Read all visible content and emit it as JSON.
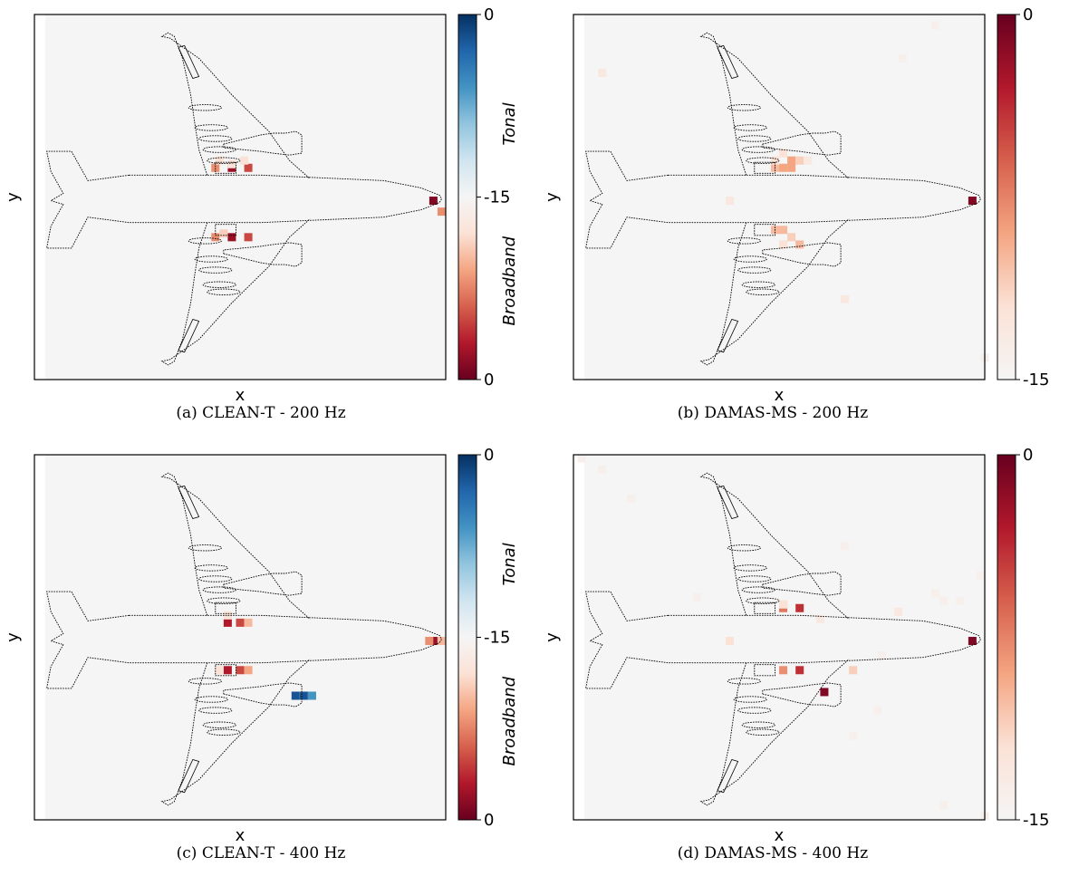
{
  "colors": {
    "background": "#f5f5f5",
    "broadband_scale": [
      "#f5f5f5",
      "#fbe2d6",
      "#f4a582",
      "#d6604d",
      "#b2182b",
      "#67001f"
    ],
    "tonal_scale": [
      "#f5f5f5",
      "#d1e5f0",
      "#92c5de",
      "#4393c3",
      "#2166ac",
      "#053061"
    ]
  },
  "chart_data": [
    {
      "type": "heatmap",
      "caption": "(a) CLEAN-T - 200 Hz",
      "xlabel": "x",
      "ylabel": "y",
      "colorbar": {
        "kind": "diverging",
        "ticks": [
          "0",
          "-15",
          "0"
        ],
        "upper_label": "Tonal",
        "lower_label": "Broadband"
      },
      "sources": [
        {
          "x": 0.48,
          "y": 0.42,
          "v": -2,
          "kind": "broadband"
        },
        {
          "x": 0.44,
          "y": 0.42,
          "v": -8,
          "kind": "broadband"
        },
        {
          "x": 0.52,
          "y": 0.42,
          "v": -5,
          "kind": "broadband"
        },
        {
          "x": 0.48,
          "y": 0.41,
          "v": -12,
          "kind": "broadband"
        },
        {
          "x": 0.51,
          "y": 0.4,
          "v": -12,
          "kind": "broadband"
        },
        {
          "x": 0.45,
          "y": 0.4,
          "v": -12,
          "kind": "broadband"
        },
        {
          "x": 0.48,
          "y": 0.61,
          "v": -2,
          "kind": "broadband"
        },
        {
          "x": 0.44,
          "y": 0.61,
          "v": -8,
          "kind": "broadband"
        },
        {
          "x": 0.52,
          "y": 0.61,
          "v": -5,
          "kind": "broadband"
        },
        {
          "x": 0.46,
          "y": 0.6,
          "v": -11,
          "kind": "broadband"
        },
        {
          "x": 0.97,
          "y": 0.51,
          "v": -1,
          "kind": "broadband"
        },
        {
          "x": 0.99,
          "y": 0.54,
          "v": -8,
          "kind": "broadband"
        }
      ]
    },
    {
      "type": "heatmap",
      "caption": "(b) DAMAS-MS - 200 Hz",
      "xlabel": "x",
      "ylabel": "y",
      "colorbar": {
        "kind": "sequential",
        "ticks": [
          "0",
          "-15"
        ]
      },
      "sources": [
        {
          "x": 0.53,
          "y": 0.42,
          "v": -9,
          "kind": "broadband"
        },
        {
          "x": 0.51,
          "y": 0.42,
          "v": -9,
          "kind": "broadband"
        },
        {
          "x": 0.49,
          "y": 0.42,
          "v": -10,
          "kind": "broadband"
        },
        {
          "x": 0.55,
          "y": 0.4,
          "v": -11,
          "kind": "broadband"
        },
        {
          "x": 0.53,
          "y": 0.4,
          "v": -9,
          "kind": "broadband"
        },
        {
          "x": 0.49,
          "y": 0.4,
          "v": -12,
          "kind": "broadband"
        },
        {
          "x": 0.51,
          "y": 0.38,
          "v": -12,
          "kind": "broadband"
        },
        {
          "x": 0.57,
          "y": 0.4,
          "v": -13,
          "kind": "broadband"
        },
        {
          "x": 0.49,
          "y": 0.59,
          "v": -10,
          "kind": "broadband"
        },
        {
          "x": 0.51,
          "y": 0.59,
          "v": -10,
          "kind": "broadband"
        },
        {
          "x": 0.53,
          "y": 0.61,
          "v": -11,
          "kind": "broadband"
        },
        {
          "x": 0.55,
          "y": 0.63,
          "v": -10,
          "kind": "broadband"
        },
        {
          "x": 0.51,
          "y": 0.63,
          "v": -12,
          "kind": "broadband"
        },
        {
          "x": 0.97,
          "y": 0.51,
          "v": -1,
          "kind": "broadband"
        },
        {
          "x": 0.38,
          "y": 0.51,
          "v": -13,
          "kind": "broadband"
        },
        {
          "x": 0.07,
          "y": 0.16,
          "v": -13,
          "kind": "broadband"
        },
        {
          "x": 0.66,
          "y": 0.78,
          "v": -13,
          "kind": "broadband"
        },
        {
          "x": 0.88,
          "y": 0.03,
          "v": -14,
          "kind": "broadband"
        },
        {
          "x": 0.8,
          "y": 0.12,
          "v": -14,
          "kind": "broadband"
        },
        {
          "x": 1.0,
          "y": 0.94,
          "v": -14,
          "kind": "broadband"
        }
      ]
    },
    {
      "type": "heatmap",
      "caption": "(c) CLEAN-T - 400 Hz",
      "xlabel": "x",
      "ylabel": "y",
      "colorbar": {
        "kind": "diverging",
        "ticks": [
          "0",
          "-15",
          "0"
        ],
        "upper_label": "Tonal",
        "lower_label": "Broadband"
      },
      "sources": [
        {
          "x": 0.47,
          "y": 0.46,
          "v": -3,
          "kind": "broadband"
        },
        {
          "x": 0.5,
          "y": 0.46,
          "v": -5,
          "kind": "broadband"
        },
        {
          "x": 0.52,
          "y": 0.46,
          "v": -10,
          "kind": "broadband"
        },
        {
          "x": 0.47,
          "y": 0.44,
          "v": -12,
          "kind": "broadband"
        },
        {
          "x": 0.47,
          "y": 0.59,
          "v": -3,
          "kind": "broadband"
        },
        {
          "x": 0.5,
          "y": 0.59,
          "v": -5,
          "kind": "broadband"
        },
        {
          "x": 0.45,
          "y": 0.59,
          "v": -12,
          "kind": "broadband"
        },
        {
          "x": 0.52,
          "y": 0.59,
          "v": -9,
          "kind": "broadband"
        },
        {
          "x": 0.97,
          "y": 0.51,
          "v": -2,
          "kind": "broadband"
        },
        {
          "x": 0.96,
          "y": 0.51,
          "v": -8,
          "kind": "broadband"
        },
        {
          "x": 0.99,
          "y": 0.51,
          "v": -10,
          "kind": "broadband"
        },
        {
          "x": 0.635,
          "y": 0.66,
          "v": -2,
          "kind": "tonal"
        },
        {
          "x": 0.655,
          "y": 0.66,
          "v": -2,
          "kind": "tonal"
        },
        {
          "x": 0.675,
          "y": 0.66,
          "v": -6,
          "kind": "tonal"
        }
      ]
    },
    {
      "type": "heatmap",
      "caption": "(d) DAMAS-MS - 400 Hz",
      "xlabel": "x",
      "ylabel": "y",
      "colorbar": {
        "kind": "sequential",
        "ticks": [
          "0",
          "-15"
        ]
      },
      "sources": [
        {
          "x": 0.51,
          "y": 0.42,
          "v": -7,
          "kind": "broadband"
        },
        {
          "x": 0.55,
          "y": 0.42,
          "v": -4,
          "kind": "broadband"
        },
        {
          "x": 0.51,
          "y": 0.41,
          "v": -12,
          "kind": "broadband"
        },
        {
          "x": 0.51,
          "y": 0.59,
          "v": -8,
          "kind": "broadband"
        },
        {
          "x": 0.55,
          "y": 0.59,
          "v": -4,
          "kind": "broadband"
        },
        {
          "x": 0.61,
          "y": 0.65,
          "v": -1,
          "kind": "broadband"
        },
        {
          "x": 0.97,
          "y": 0.51,
          "v": -1,
          "kind": "broadband"
        },
        {
          "x": 0.38,
          "y": 0.51,
          "v": -12,
          "kind": "broadband"
        },
        {
          "x": 0.68,
          "y": 0.59,
          "v": -11,
          "kind": "broadband"
        },
        {
          "x": 0.6,
          "y": 0.45,
          "v": -13,
          "kind": "broadband"
        },
        {
          "x": 0.79,
          "y": 0.43,
          "v": -13,
          "kind": "broadband"
        },
        {
          "x": 0.88,
          "y": 0.38,
          "v": -14,
          "kind": "broadband"
        },
        {
          "x": 0.9,
          "y": 0.4,
          "v": -14,
          "kind": "broadband"
        },
        {
          "x": 0.94,
          "y": 0.4,
          "v": -14,
          "kind": "broadband"
        },
        {
          "x": 0.99,
          "y": 0.33,
          "v": -14,
          "kind": "broadband"
        },
        {
          "x": 0.66,
          "y": 0.25,
          "v": -14,
          "kind": "broadband"
        },
        {
          "x": 0.3,
          "y": 0.39,
          "v": -14,
          "kind": "broadband"
        },
        {
          "x": 0.07,
          "y": 0.04,
          "v": -14,
          "kind": "broadband"
        },
        {
          "x": 0.14,
          "y": 0.12,
          "v": -14,
          "kind": "broadband"
        },
        {
          "x": 0.74,
          "y": 0.7,
          "v": -14,
          "kind": "broadband"
        },
        {
          "x": 0.68,
          "y": 0.77,
          "v": -14,
          "kind": "broadband"
        },
        {
          "x": 0.75,
          "y": 0.55,
          "v": -14,
          "kind": "broadband"
        },
        {
          "x": 0.9,
          "y": 0.96,
          "v": -14,
          "kind": "broadband"
        },
        {
          "x": 1.0,
          "y": 0.99,
          "v": -14,
          "kind": "broadband"
        },
        {
          "x": 0.02,
          "y": 0.01,
          "v": -14,
          "kind": "broadband"
        }
      ]
    }
  ]
}
